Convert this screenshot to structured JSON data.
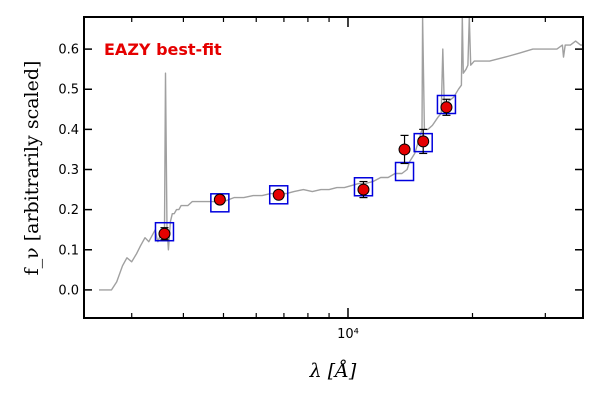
{
  "chart_data": {
    "type": "scatter",
    "title": "",
    "xlabel": "λ [Å]",
    "ylabel": "f_ν [arbitrarily scaled]",
    "xscale": "log",
    "xlim": [
      2300,
      37000
    ],
    "ylim": [
      -0.07,
      0.68
    ],
    "x_major_ticks": [
      {
        "value": 10000,
        "label": "10⁴"
      }
    ],
    "x_minor_ticks": [
      3000,
      4000,
      5000,
      6000,
      7000,
      8000,
      9000,
      20000,
      30000
    ],
    "y_ticks": [
      0.0,
      0.1,
      0.2,
      0.3,
      0.4,
      0.5,
      0.6
    ],
    "y_tick_labels": [
      "0.0",
      "0.1",
      "0.2",
      "0.3",
      "0.4",
      "0.5",
      "0.6"
    ],
    "annotation": {
      "text": "EAZY best-fit",
      "color": "#e50000",
      "position": "top-left"
    },
    "colors": {
      "template": "#a0a0a0",
      "observed_fill": "#e50000",
      "model_box": "#0000dd",
      "errorbar": "#000000"
    },
    "series": [
      {
        "name": "template",
        "kind": "line",
        "x": [
          2500,
          2580,
          2680,
          2760,
          2850,
          2920,
          3000,
          3080,
          3150,
          3230,
          3300,
          3380,
          3420,
          3450,
          3470,
          3500,
          3520,
          3560,
          3600,
          3620,
          3650,
          3660,
          3680,
          3720,
          3760,
          3800,
          3850,
          3900,
          3950,
          4000,
          4100,
          4200,
          4300,
          4500,
          4700,
          5000,
          5300,
          5600,
          5900,
          6200,
          6500,
          6800,
          7100,
          7400,
          7800,
          8200,
          8600,
          9000,
          9400,
          9800,
          10200,
          10600,
          11000,
          11500,
          12000,
          12500,
          13000,
          13500,
          13900,
          14100,
          14300,
          14500,
          14700,
          15000,
          15100,
          15150,
          15300,
          15600,
          16000,
          16500,
          16800,
          16950,
          17100,
          17500,
          18000,
          18500,
          18800,
          18900,
          19000,
          19300,
          19500,
          19650,
          19800,
          20200,
          20500,
          21000,
          22000,
          24000,
          26000,
          28000,
          30000,
          32000,
          33000,
          33200,
          33500,
          34500,
          35500,
          36500,
          37000
        ],
        "y": [
          0.0,
          0.0,
          0.0,
          0.02,
          0.06,
          0.08,
          0.07,
          0.09,
          0.11,
          0.13,
          0.12,
          0.14,
          0.15,
          0.13,
          0.12,
          0.13,
          0.14,
          0.14,
          0.15,
          0.54,
          0.15,
          0.14,
          0.1,
          0.17,
          0.19,
          0.19,
          0.2,
          0.2,
          0.21,
          0.21,
          0.21,
          0.22,
          0.22,
          0.22,
          0.22,
          0.22,
          0.23,
          0.23,
          0.235,
          0.235,
          0.24,
          0.24,
          0.24,
          0.245,
          0.25,
          0.245,
          0.25,
          0.25,
          0.255,
          0.255,
          0.26,
          0.265,
          0.265,
          0.27,
          0.28,
          0.28,
          0.29,
          0.29,
          0.3,
          0.32,
          0.33,
          0.34,
          0.36,
          0.39,
          0.4,
          0.68,
          0.4,
          0.4,
          0.41,
          0.43,
          0.44,
          0.6,
          0.45,
          0.47,
          0.48,
          0.5,
          0.51,
          0.68,
          0.54,
          0.55,
          0.56,
          0.68,
          0.56,
          0.57,
          0.57,
          0.57,
          0.57,
          0.58,
          0.59,
          0.6,
          0.6,
          0.6,
          0.61,
          0.58,
          0.61,
          0.61,
          0.62,
          0.61,
          0.61
        ]
      },
      {
        "name": "observed",
        "kind": "points_with_errorbars",
        "x": [
          3600,
          4900,
          6800,
          10900,
          13700,
          15200,
          17300
        ],
        "y": [
          0.14,
          0.225,
          0.237,
          0.25,
          0.35,
          0.37,
          0.455
        ],
        "yerr": [
          0.015,
          0.01,
          0.01,
          0.02,
          0.035,
          0.03,
          0.02
        ]
      },
      {
        "name": "model",
        "kind": "open_squares",
        "x": [
          3600,
          4900,
          6800,
          10900,
          13700,
          15200,
          17300
        ],
        "y": [
          0.145,
          0.217,
          0.237,
          0.257,
          0.295,
          0.367,
          0.462
        ]
      }
    ]
  }
}
